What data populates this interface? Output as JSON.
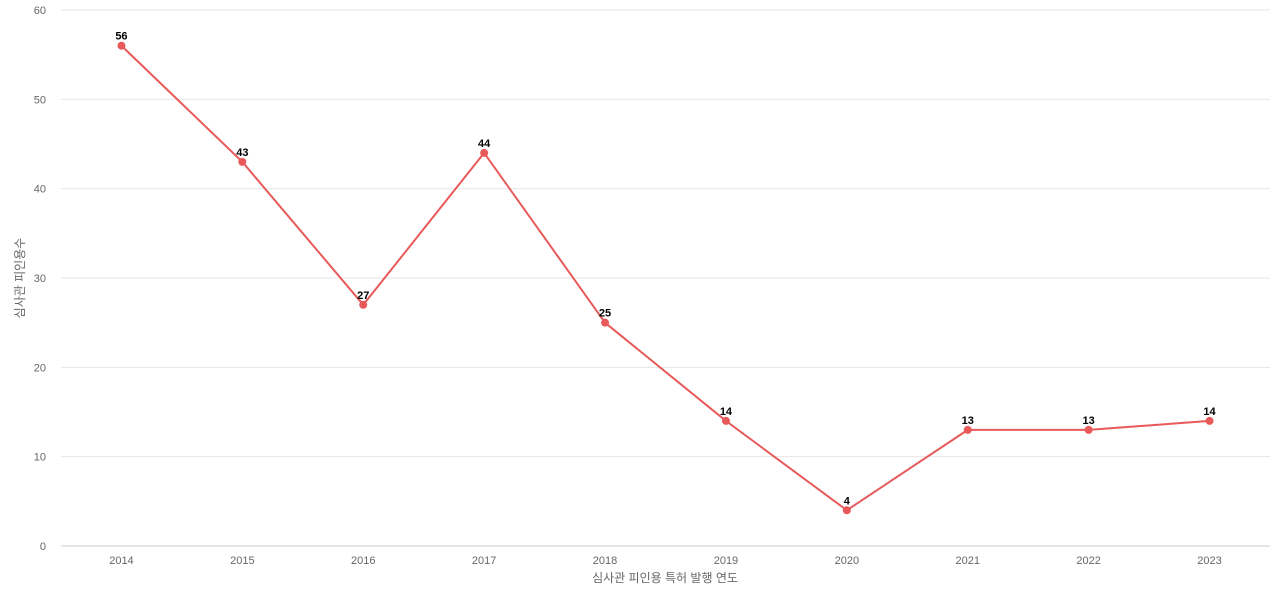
{
  "chart_data": {
    "type": "line",
    "title": "",
    "xlabel": "심사관 피인용 특허 발행 연도",
    "ylabel": "심사관 피인용수",
    "categories": [
      "2014",
      "2015",
      "2016",
      "2017",
      "2018",
      "2019",
      "2020",
      "2021",
      "2022",
      "2023"
    ],
    "series": [
      {
        "values": [
          56,
          43,
          27,
          44,
          25,
          14,
          4,
          13,
          13,
          14
        ],
        "color": "#e85a5a"
      }
    ],
    "ylim": [
      0,
      60
    ],
    "yticks": [
      0,
      10,
      20,
      30,
      40,
      50,
      60
    ],
    "grid": true,
    "legend": "none",
    "data_labels": true
  }
}
